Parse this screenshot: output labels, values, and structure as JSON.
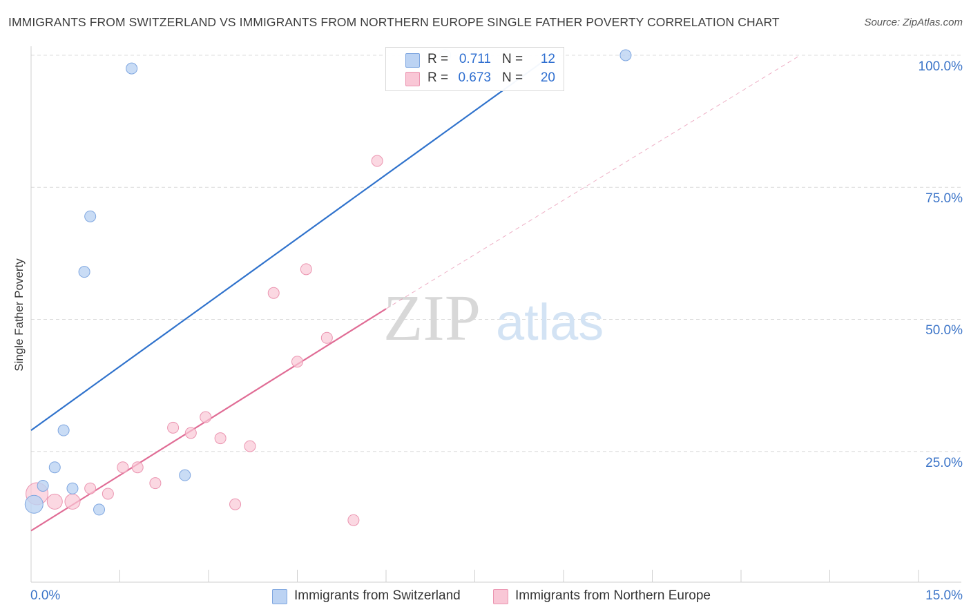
{
  "title": "IMMIGRANTS FROM SWITZERLAND VS IMMIGRANTS FROM NORTHERN EUROPE SINGLE FATHER POVERTY CORRELATION CHART",
  "source": "Source: ZipAtlas.com",
  "watermark": {
    "zip": "ZIP",
    "atlas": "atlas"
  },
  "legend": {
    "r_label": "R =",
    "n_label": "N =",
    "rows": [
      {
        "r": "0.711",
        "n": "12",
        "color": "#a9c8f0"
      },
      {
        "r": "0.673",
        "n": "20",
        "color": "#f7b8cb"
      }
    ]
  },
  "colors": {
    "switzerland_fill": "#bcd3f3",
    "switzerland_stroke": "#7ea6e0",
    "switzerland_line": "#2f72cc",
    "northern_fill": "#f9c7d6",
    "northern_stroke": "#eb94b0",
    "northern_line": "#e06c95",
    "axis_label": "#3b74c8"
  },
  "chart_data": {
    "type": "scatter",
    "xlabel": "",
    "ylabel": "Single Father Poverty",
    "xlim": [
      0,
      15
    ],
    "ylim": [
      0,
      105
    ],
    "x_tick_labels": [
      "0.0%",
      "15.0%"
    ],
    "y_ticks": [
      25,
      50,
      75,
      100
    ],
    "y_tick_labels": [
      "25.0%",
      "50.0%",
      "75.0%",
      "100.0%"
    ],
    "grid": "horizontal dashed",
    "legend_position": "top-center",
    "series": [
      {
        "name": "Immigrants from Switzerland",
        "points": [
          {
            "x": 0.05,
            "y": 15.0,
            "big": true
          },
          {
            "x": 0.2,
            "y": 18.5
          },
          {
            "x": 0.4,
            "y": 22.0
          },
          {
            "x": 0.55,
            "y": 29.0
          },
          {
            "x": 0.7,
            "y": 18.0
          },
          {
            "x": 0.9,
            "y": 59.0
          },
          {
            "x": 1.0,
            "y": 69.5
          },
          {
            "x": 1.15,
            "y": 14.0
          },
          {
            "x": 1.7,
            "y": 97.5
          },
          {
            "x": 2.6,
            "y": 20.5
          },
          {
            "x": 7.0,
            "y": 100.0
          },
          {
            "x": 10.05,
            "y": 100.0
          }
        ],
        "trend": {
          "x0": 0.0,
          "y0": 29.0,
          "x1": 8.8,
          "y1": 100.0
        }
      },
      {
        "name": "Immigrants from Northern Europe",
        "points": [
          {
            "x": 0.1,
            "y": 17.0,
            "big": true
          },
          {
            "x": 0.4,
            "y": 15.5
          },
          {
            "x": 0.7,
            "y": 15.5
          },
          {
            "x": 1.0,
            "y": 18.0
          },
          {
            "x": 1.3,
            "y": 17.0
          },
          {
            "x": 1.55,
            "y": 22.0
          },
          {
            "x": 1.8,
            "y": 22.0
          },
          {
            "x": 2.1,
            "y": 19.0
          },
          {
            "x": 2.4,
            "y": 29.5
          },
          {
            "x": 2.7,
            "y": 28.5
          },
          {
            "x": 2.95,
            "y": 31.5
          },
          {
            "x": 3.2,
            "y": 27.5
          },
          {
            "x": 3.45,
            "y": 15.0
          },
          {
            "x": 3.7,
            "y": 26.0
          },
          {
            "x": 4.1,
            "y": 55.0
          },
          {
            "x": 4.5,
            "y": 42.0
          },
          {
            "x": 4.65,
            "y": 59.5
          },
          {
            "x": 5.0,
            "y": 46.5
          },
          {
            "x": 5.45,
            "y": 12.0
          },
          {
            "x": 5.85,
            "y": 80.0
          }
        ],
        "trend": {
          "x0": 0.0,
          "y0": 10.0,
          "x1": 6.0,
          "y1": 52.0
        },
        "trend_extension": {
          "x0": 6.0,
          "y0": 52.0,
          "x1": 13.0,
          "y1": 100.0
        }
      }
    ]
  }
}
